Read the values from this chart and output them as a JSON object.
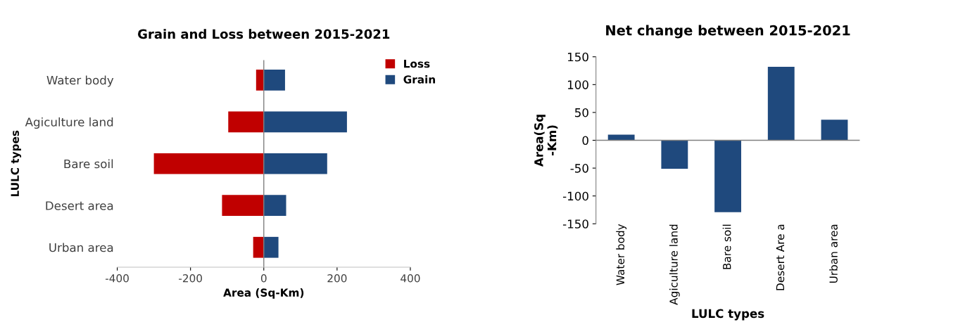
{
  "chart_data": [
    {
      "type": "bar",
      "orientation": "horizontal",
      "stacked": true,
      "title": "Grain and Loss between 2015-2021",
      "xlabel": "Area (Sq-Km)",
      "ylabel": "LULC types",
      "categories": [
        "Water body",
        "Agiculture land",
        "Bare soil",
        "Desert area",
        "Urban area"
      ],
      "series": [
        {
          "name": "Loss",
          "color": "#c00000",
          "values": [
            -21,
            -97,
            -300,
            -114,
            -29
          ]
        },
        {
          "name": "Grain",
          "color": "#1f497d",
          "values": [
            58,
            227,
            173,
            61,
            40
          ]
        }
      ],
      "xlim": [
        -400,
        400
      ],
      "xticks": [
        -400,
        -200,
        0,
        200,
        400
      ],
      "legend": "top right"
    },
    {
      "type": "bar",
      "title": "Net change between 2015-2021",
      "xlabel": "LULC types",
      "ylabel": "Area(Sq\n-Km)",
      "categories": [
        "Water body",
        "Agiculture land",
        "Bare soil",
        "Desert Are a",
        "Urban area"
      ],
      "series": [
        {
          "color": "#1f497d",
          "values": [
            10,
            -51,
            -129,
            132,
            37
          ]
        }
      ],
      "ylim": [
        -150,
        150
      ],
      "yticks": [
        -150,
        -100,
        -50,
        0,
        50,
        100,
        150
      ]
    }
  ]
}
